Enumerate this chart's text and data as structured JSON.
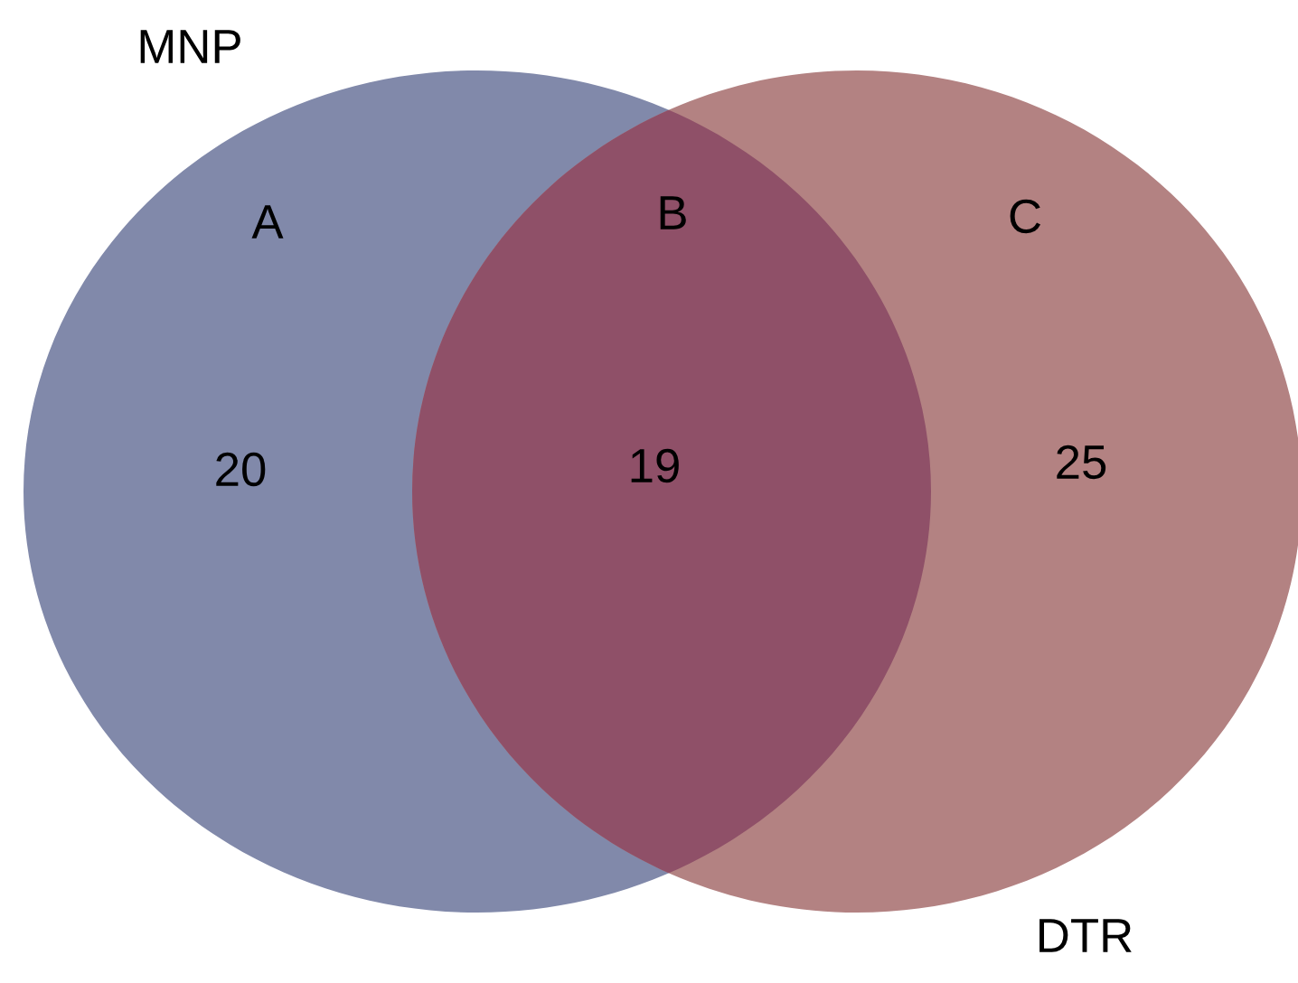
{
  "chart_data": {
    "type": "other",
    "annotations": [
      "MNP",
      "DTR"
    ],
    "categories": [
      "A",
      "B",
      "C"
    ],
    "values": [
      20,
      19,
      25
    ],
    "data_labels": true,
    "colors": [
      "#8189aa",
      "#8f5068",
      "#b38282"
    ]
  }
}
